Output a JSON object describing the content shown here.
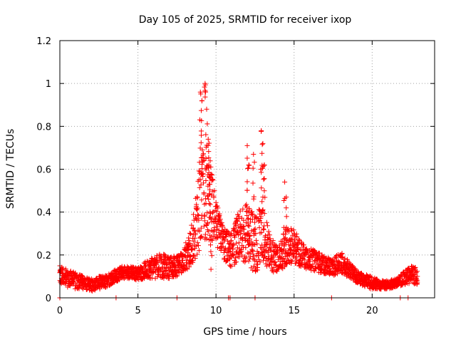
{
  "chart_data": {
    "type": "scatter",
    "title": "Day 105 of 2025, SRMTID for receiver ixop",
    "xlabel": "GPS time / hours",
    "ylabel": "SRMTID / TECUs",
    "xlim": [
      0,
      24
    ],
    "ylim": [
      0,
      1.2
    ],
    "x_ticks": [
      0,
      5,
      10,
      15,
      20
    ],
    "x_tick_labels": [
      "0",
      "5",
      "10",
      "15",
      "20"
    ],
    "y_ticks": [
      0,
      0.2,
      0.4,
      0.6,
      0.8,
      1.0,
      1.2
    ],
    "y_tick_labels": [
      "0",
      "0.2",
      "0.4",
      "0.6",
      "0.8",
      "1",
      "1.2"
    ],
    "grid": true,
    "marker": "+",
    "series": [
      {
        "name": "SRMTID",
        "color": "#ff0000",
        "profile": [
          [
            0.0,
            0.1,
            0.05
          ],
          [
            0.5,
            0.09,
            0.04
          ],
          [
            1.0,
            0.08,
            0.04
          ],
          [
            1.5,
            0.07,
            0.03
          ],
          [
            2.0,
            0.06,
            0.03
          ],
          [
            2.5,
            0.07,
            0.03
          ],
          [
            3.0,
            0.08,
            0.03
          ],
          [
            3.5,
            0.1,
            0.03
          ],
          [
            4.0,
            0.12,
            0.03
          ],
          [
            4.5,
            0.12,
            0.03
          ],
          [
            5.0,
            0.11,
            0.03
          ],
          [
            5.5,
            0.13,
            0.04
          ],
          [
            6.0,
            0.14,
            0.05
          ],
          [
            6.5,
            0.15,
            0.06
          ],
          [
            7.0,
            0.14,
            0.05
          ],
          [
            7.5,
            0.15,
            0.05
          ],
          [
            8.0,
            0.18,
            0.06
          ],
          [
            8.5,
            0.26,
            0.1
          ],
          [
            9.0,
            0.45,
            0.22
          ],
          [
            9.5,
            0.5,
            0.22
          ],
          [
            10.0,
            0.35,
            0.1
          ],
          [
            10.5,
            0.25,
            0.08
          ],
          [
            11.0,
            0.22,
            0.08
          ],
          [
            11.5,
            0.3,
            0.12
          ],
          [
            12.0,
            0.3,
            0.14
          ],
          [
            12.5,
            0.25,
            0.14
          ],
          [
            13.0,
            0.3,
            0.14
          ],
          [
            13.5,
            0.2,
            0.08
          ],
          [
            14.0,
            0.18,
            0.06
          ],
          [
            14.5,
            0.24,
            0.09
          ],
          [
            15.0,
            0.24,
            0.08
          ],
          [
            15.5,
            0.2,
            0.06
          ],
          [
            16.0,
            0.18,
            0.05
          ],
          [
            16.5,
            0.17,
            0.05
          ],
          [
            17.0,
            0.15,
            0.04
          ],
          [
            17.5,
            0.14,
            0.04
          ],
          [
            18.0,
            0.17,
            0.05
          ],
          [
            18.5,
            0.13,
            0.04
          ],
          [
            19.0,
            0.1,
            0.03
          ],
          [
            19.5,
            0.08,
            0.03
          ],
          [
            20.0,
            0.07,
            0.03
          ],
          [
            20.5,
            0.06,
            0.02
          ],
          [
            21.0,
            0.06,
            0.02
          ],
          [
            21.5,
            0.07,
            0.02
          ],
          [
            22.0,
            0.09,
            0.03
          ],
          [
            22.5,
            0.11,
            0.04
          ],
          [
            22.9,
            0.1,
            0.04
          ]
        ],
        "peaks": [
          [
            9.0,
            0.96
          ],
          [
            9.1,
            0.92
          ],
          [
            9.3,
            1.0
          ],
          [
            9.4,
            0.88
          ],
          [
            9.5,
            0.74
          ],
          [
            9.6,
            0.56
          ],
          [
            9.7,
            0.48
          ],
          [
            12.0,
            0.71
          ],
          [
            12.1,
            0.62
          ],
          [
            12.4,
            0.67
          ],
          [
            12.9,
            0.78
          ],
          [
            13.0,
            0.72
          ],
          [
            13.1,
            0.62
          ],
          [
            14.4,
            0.54
          ],
          [
            14.5,
            0.47
          ]
        ],
        "zero_hits": [
          0.0,
          3.6,
          7.5,
          10.8,
          10.9,
          12.5,
          17.4,
          21.8,
          22.3
        ]
      }
    ]
  }
}
